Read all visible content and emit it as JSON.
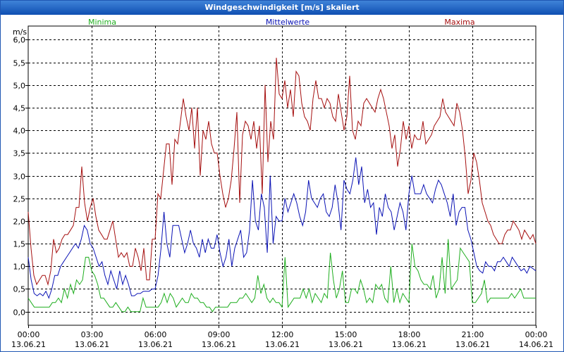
{
  "window": {
    "title": "Windgeschwindigkeit [m/s] skaliert"
  },
  "chart_data": {
    "type": "line",
    "ylabel": "m/s",
    "ylim": [
      -0.3,
      6.3
    ],
    "yticks": [
      "0,0",
      "0,5",
      "1,0",
      "1,5",
      "2,0",
      "2,5",
      "3,0",
      "3,5",
      "4,0",
      "4,5",
      "5,0",
      "5,5",
      "6,0"
    ],
    "xlim": [
      0,
      24
    ],
    "xticks": [
      {
        "time": "00:00",
        "date": "13.06.21"
      },
      {
        "time": "03:00",
        "date": "13.06.21"
      },
      {
        "time": "06:00",
        "date": "13.06.21"
      },
      {
        "time": "09:00",
        "date": "13.06.21"
      },
      {
        "time": "12:00",
        "date": "13.06.21"
      },
      {
        "time": "15:00",
        "date": "13.06.21"
      },
      {
        "time": "18:00",
        "date": "13.06.21"
      },
      {
        "time": "21:00",
        "date": "13.06.21"
      },
      {
        "time": "00:00",
        "date": "14.06.21"
      }
    ],
    "grid": true,
    "series": [
      {
        "name": "Minima",
        "color": "#1fae1f",
        "values": [
          0.3,
          0.2,
          0.1,
          0.1,
          0.1,
          0.1,
          0.1,
          0.1,
          0.2,
          0.2,
          0.3,
          0.2,
          0.5,
          0.3,
          0.6,
          0.4,
          0.7,
          0.6,
          0.7,
          1.2,
          1.2,
          0.9,
          0.8,
          0.6,
          0.3,
          0.3,
          0.2,
          0.1,
          0.1,
          0.2,
          0.1,
          0.0,
          0.0,
          0.1,
          0.0,
          0.0,
          0.0,
          0.0,
          0.3,
          0.1,
          0.1,
          0.1,
          0.1,
          0.1,
          0.2,
          0.4,
          0.2,
          0.4,
          0.3,
          0.1,
          0.2,
          0.3,
          0.2,
          0.2,
          0.4,
          0.3,
          0.3,
          0.2,
          0.2,
          0.1,
          0.1,
          0.0,
          0.1,
          0.1,
          0.1,
          0.1,
          0.1,
          0.2,
          0.2,
          0.2,
          0.3,
          0.3,
          0.4,
          0.3,
          0.2,
          0.3,
          0.8,
          0.4,
          0.6,
          0.3,
          0.2,
          0.3,
          0.2,
          0.2,
          0.1,
          1.2,
          0.1,
          0.2,
          0.3,
          0.3,
          0.3,
          0.5,
          0.3,
          0.5,
          0.2,
          0.4,
          0.3,
          0.2,
          0.4,
          0.3,
          1.3,
          0.7,
          0.3,
          0.5,
          0.9,
          0.2,
          0.2,
          0.5,
          0.5,
          0.4,
          0.7,
          0.5,
          0.2,
          0.3,
          0.2,
          0.6,
          0.5,
          0.6,
          0.3,
          0.2,
          1.0,
          0.2,
          0.5,
          0.2,
          0.4,
          0.3,
          0.2,
          1.5,
          1.0,
          0.9,
          0.7,
          0.6,
          0.6,
          0.5,
          0.8,
          0.3,
          0.5,
          1.2,
          0.4,
          1.6,
          0.5,
          0.6,
          0.7,
          1.4,
          1.3,
          1.2,
          1.1,
          0.2,
          0.2,
          0.3,
          0.4,
          0.7,
          0.2,
          0.3,
          0.3,
          0.3,
          0.3,
          0.3,
          0.3,
          0.3,
          0.4,
          0.3,
          0.4,
          0.5,
          0.3,
          0.3,
          0.3,
          0.3,
          0.3
        ],
        "label_position": "left"
      },
      {
        "name": "Mittelwerte",
        "color": "#0b13b5",
        "values": [
          1.2,
          0.7,
          0.4,
          0.35,
          0.4,
          0.35,
          0.45,
          0.3,
          0.5,
          0.8,
          0.8,
          1.0,
          1.1,
          1.2,
          1.3,
          1.4,
          1.5,
          1.4,
          1.6,
          1.9,
          1.8,
          1.5,
          1.4,
          1.2,
          1.0,
          1.1,
          0.8,
          0.6,
          0.9,
          0.7,
          0.5,
          0.9,
          0.6,
          0.8,
          0.6,
          0.35,
          0.35,
          0.4,
          0.4,
          0.45,
          0.45,
          0.45,
          0.5,
          0.5,
          0.8,
          1.4,
          2.2,
          1.5,
          1.2,
          1.9,
          1.9,
          1.9,
          1.6,
          1.3,
          1.5,
          1.8,
          1.5,
          1.4,
          1.2,
          1.6,
          1.3,
          1.6,
          1.4,
          1.4,
          1.7,
          1.3,
          1.0,
          1.2,
          1.6,
          1.0,
          1.4,
          1.6,
          1.8,
          1.2,
          1.3,
          1.8,
          2.9,
          2.0,
          1.8,
          2.6,
          2.3,
          1.3,
          3.0,
          1.5,
          2.1,
          2.0,
          2.0,
          2.5,
          2.2,
          2.4,
          2.6,
          2.4,
          2.1,
          1.9,
          2.2,
          2.9,
          2.5,
          2.4,
          2.3,
          2.5,
          2.6,
          2.2,
          2.1,
          2.3,
          2.8,
          2.4,
          1.8,
          2.9,
          2.7,
          2.6,
          2.9,
          3.4,
          2.8,
          3.2,
          2.4,
          2.7,
          2.3,
          2.4,
          1.7,
          2.3,
          2.1,
          2.6,
          2.3,
          2.2,
          1.8,
          2.1,
          2.4,
          2.2,
          1.8,
          2.6,
          3.0,
          2.6,
          2.6,
          2.6,
          2.8,
          2.6,
          2.5,
          2.4,
          2.7,
          2.9,
          2.8,
          2.6,
          2.4,
          2.1,
          2.6,
          1.9,
          2.2,
          2.3,
          2.3,
          1.8,
          1.6,
          1.3,
          1.0,
          0.9,
          0.85,
          1.1,
          1.0,
          1.0,
          0.9,
          1.1,
          1.1,
          1.2,
          1.1,
          1.0,
          1.2,
          1.1,
          1.0,
          0.9,
          0.95,
          0.85,
          1.0,
          0.95,
          0.9
        ],
        "label_position": "center"
      },
      {
        "name": "Maxima",
        "color": "#a50f0f",
        "values": [
          2.2,
          1.4,
          0.8,
          0.6,
          0.7,
          0.8,
          0.8,
          0.6,
          0.9,
          1.6,
          1.3,
          1.4,
          1.6,
          1.7,
          1.7,
          1.8,
          1.9,
          2.3,
          2.3,
          3.2,
          2.4,
          2.0,
          2.3,
          2.5,
          2.1,
          1.8,
          1.7,
          1.6,
          1.6,
          1.8,
          2.0,
          1.6,
          1.2,
          1.3,
          1.2,
          1.3,
          1.0,
          1.0,
          1.4,
          1.2,
          0.9,
          1.4,
          0.7,
          0.7,
          1.6,
          1.6,
          2.6,
          2.5,
          3.1,
          3.7,
          3.7,
          2.8,
          3.8,
          3.7,
          4.2,
          4.7,
          4.3,
          4.0,
          4.5,
          3.6,
          4.5,
          3.0,
          4.0,
          3.8,
          4.2,
          3.7,
          3.5,
          3.5,
          3.0,
          2.6,
          2.3,
          2.5,
          2.9,
          3.6,
          4.4,
          2.4,
          3.9,
          4.2,
          4.1,
          3.8,
          4.2,
          3.6,
          4.1,
          2.6,
          5.0,
          3.3,
          4.2,
          3.8,
          5.6,
          4.8,
          4.7,
          5.1,
          4.5,
          4.9,
          4.3,
          5.3,
          5.2,
          4.6,
          4.3,
          4.2,
          4.0,
          4.7,
          5.1,
          4.7,
          4.7,
          4.5,
          4.7,
          4.6,
          4.3,
          4.2,
          4.8,
          4.4,
          4.0,
          4.3,
          5.2,
          4.0,
          3.8,
          4.2,
          4.1,
          4.6,
          4.7,
          4.6,
          4.5,
          4.4,
          4.7,
          4.9,
          4.7,
          4.4,
          4.1,
          3.6,
          3.9,
          3.2,
          3.6,
          4.2,
          3.8,
          4.1,
          3.6,
          3.9,
          3.8,
          3.8,
          4.2,
          3.7,
          3.8,
          3.9,
          4.1,
          4.2,
          4.3,
          4.7,
          4.4,
          4.3,
          4.2,
          4.1,
          4.6,
          4.4,
          4.0,
          3.4,
          2.6,
          2.9,
          3.5,
          3.3,
          2.9,
          2.4,
          2.2,
          2.0,
          1.9,
          1.7,
          1.6,
          1.5,
          1.5,
          1.7,
          1.8,
          1.8,
          2.0,
          1.9,
          1.8,
          1.6,
          1.8,
          1.7,
          1.6,
          1.7,
          1.5
        ],
        "label_position": "right"
      }
    ]
  }
}
